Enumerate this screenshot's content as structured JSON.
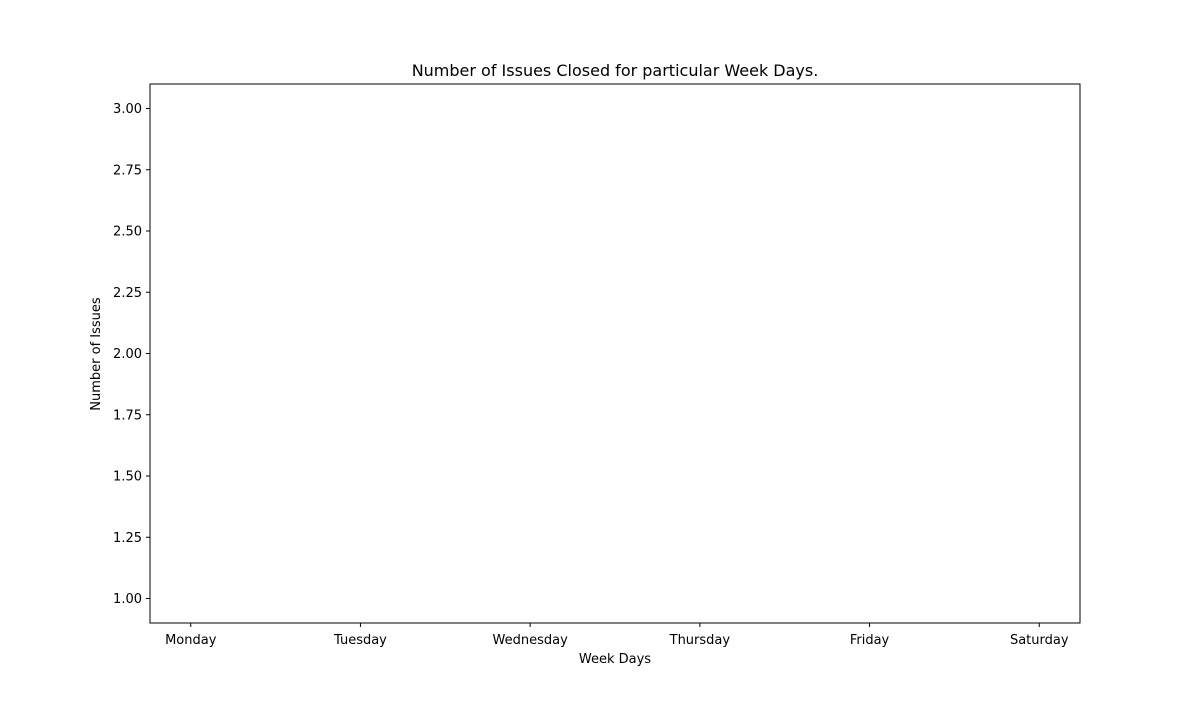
{
  "chart_data": {
    "type": "bar",
    "title": "Number of Issues Closed for particular Week Days.",
    "xlabel": "Week Days",
    "ylabel": "Number of Issues",
    "categories": [
      "Monday",
      "Tuesday",
      "Wednesday",
      "Thursday",
      "Friday",
      "Saturday"
    ],
    "series": [],
    "ylim": [
      0.9,
      3.1
    ],
    "yticks": [
      "1.00",
      "1.25",
      "1.50",
      "1.75",
      "2.00",
      "2.25",
      "2.50",
      "2.75",
      "3.00"
    ],
    "ytick_values": [
      1.0,
      1.25,
      1.5,
      1.75,
      2.0,
      2.25,
      2.5,
      2.75,
      3.0
    ],
    "grid": false,
    "legend": "none",
    "colors": {
      "frame": "#000000",
      "background": "#ffffff",
      "text": "#000000"
    }
  }
}
